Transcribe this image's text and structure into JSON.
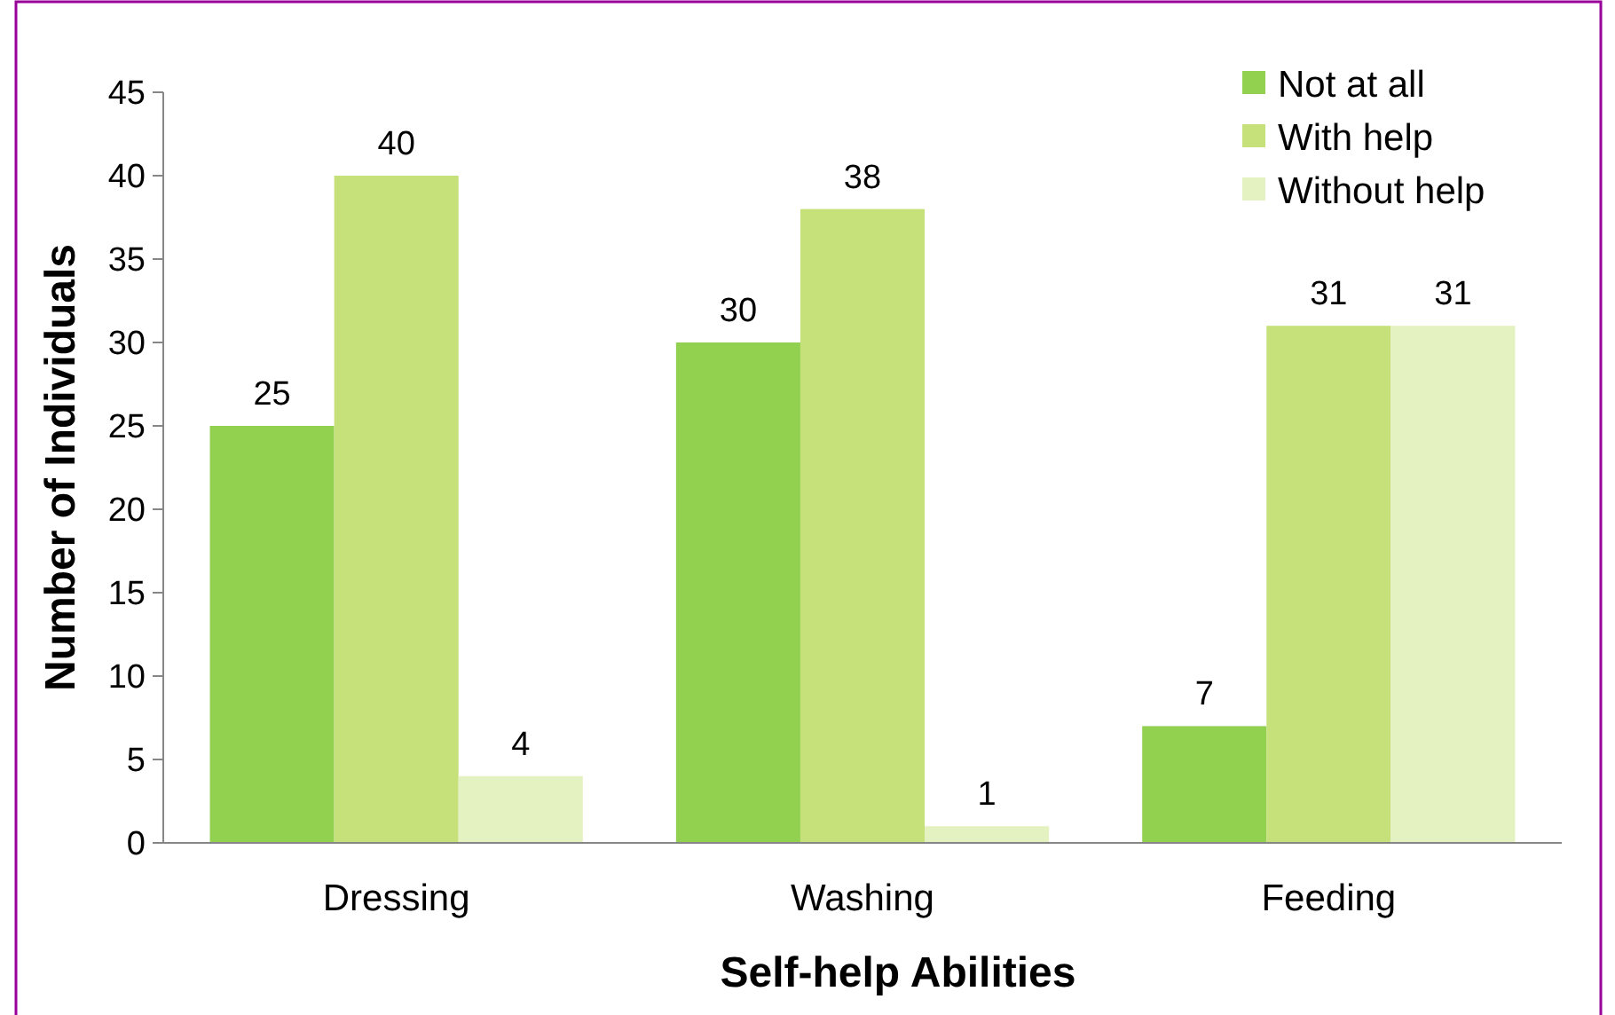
{
  "chart_data": {
    "type": "bar",
    "xlabel": "Self-help Abilities",
    "ylabel": "Number of Individuals",
    "categories": [
      "Dressing",
      "Washing",
      "Feeding"
    ],
    "series": [
      {
        "name": "Not at all",
        "color": "#92d050",
        "values": [
          25,
          30,
          7
        ]
      },
      {
        "name": "With help",
        "color": "#c6e07a",
        "values": [
          40,
          38,
          31
        ]
      },
      {
        "name": "Without help",
        "color": "#e4f1c0",
        "values": [
          4,
          1,
          31
        ]
      }
    ],
    "ylim": [
      0,
      45
    ],
    "yticks": [
      0,
      5,
      10,
      15,
      20,
      25,
      30,
      35,
      40,
      45
    ],
    "data_labels": true,
    "legend": "top right",
    "grid": false
  }
}
